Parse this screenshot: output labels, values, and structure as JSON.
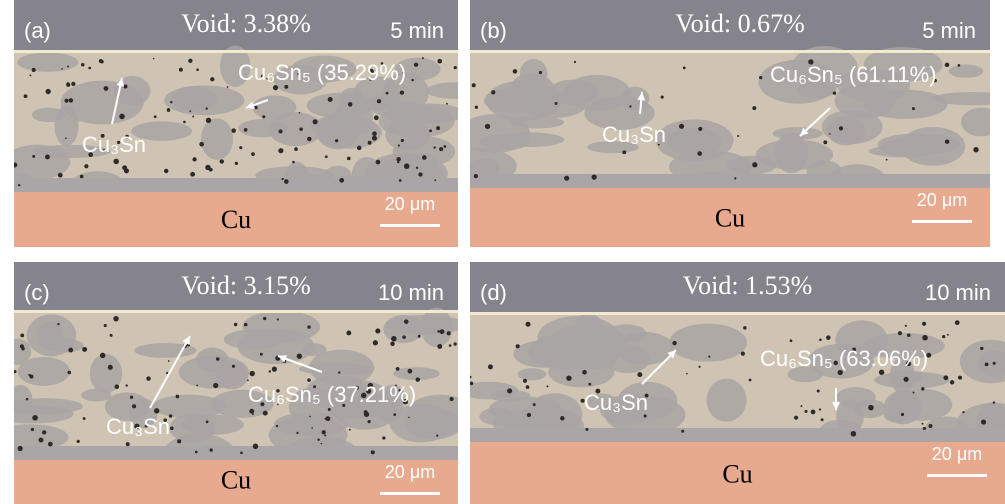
{
  "panels": [
    {
      "label": "(a)",
      "void": "Void: 3.38%",
      "time": "5 min",
      "phase_a": "Cu₆Sn₅ (35.29%)",
      "phase_b": "Cu₃Sn",
      "substrate": "Cu",
      "scale": "20 μm"
    },
    {
      "label": "(b)",
      "void": "Void: 0.67%",
      "time": "5 min",
      "phase_a": "Cu₆Sn₅ (61.11%)",
      "phase_b": "Cu₃Sn",
      "substrate": "Cu",
      "scale": "20 μm"
    },
    {
      "label": "(c)",
      "void": "Void: 3.15%",
      "time": "10 min",
      "phase_a": "Cu₆Sn₅ (37.21%)",
      "phase_b": "Cu₃Sn",
      "substrate": "Cu",
      "scale": "20 μm"
    },
    {
      "label": "(d)",
      "void": "Void: 1.53%",
      "time": "10 min",
      "phase_a": "Cu₆Sn₅ (63.06%)",
      "phase_b": "Cu₃Sn",
      "substrate": "Cu",
      "scale": "20 μm"
    }
  ]
}
